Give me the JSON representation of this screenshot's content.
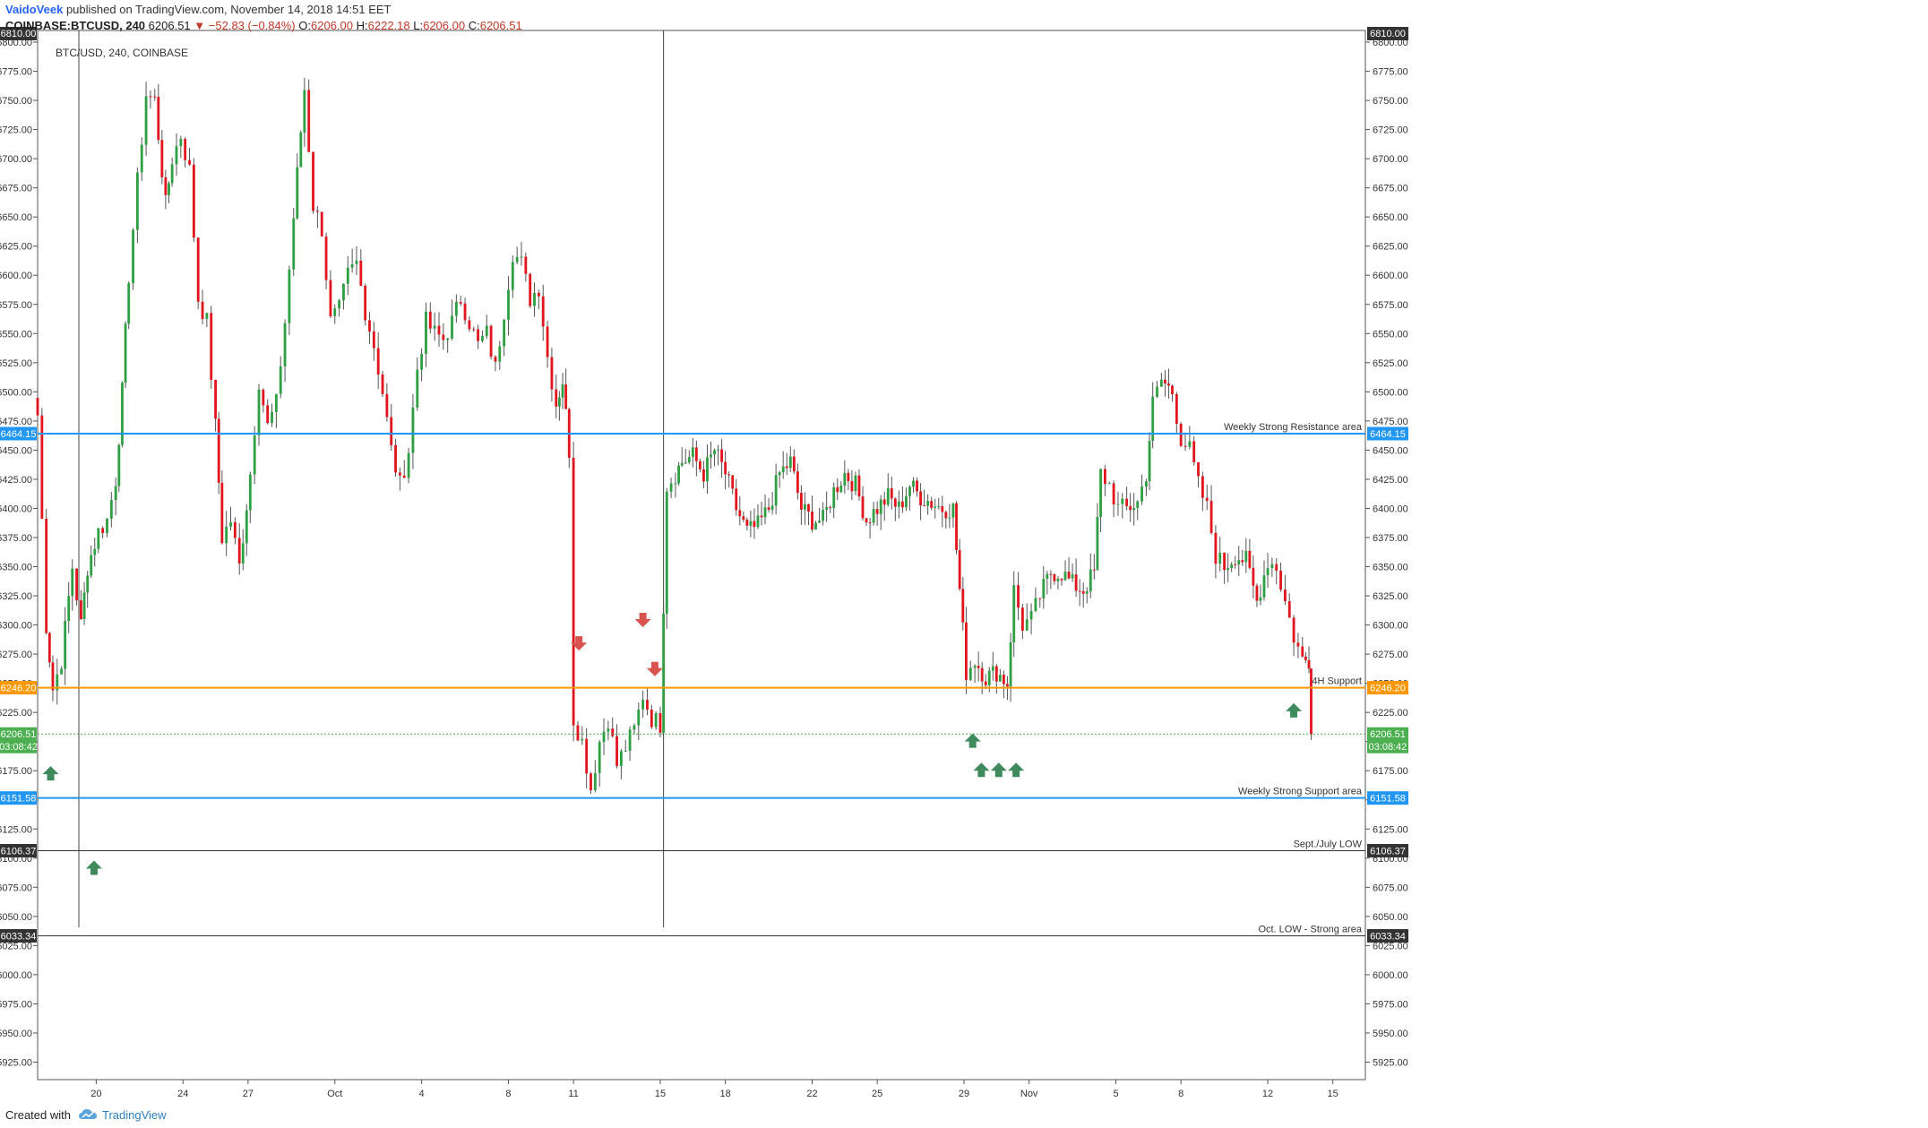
{
  "header": {
    "author": "VaidoVeek",
    "published": "published on TradingView.com, November 14, 2018 14:51 EET",
    "symbol": "COINBASE:BTCUSD, 240",
    "last": "6206.51",
    "change_arrow": "▼",
    "change": "−52.83 (−0.84%)",
    "o_label": "O:",
    "o": "6206.00",
    "h_label": "H:",
    "h": "6222.18",
    "l_label": "L:",
    "l": "6206.00",
    "c_label": "C:",
    "c": "6206.51"
  },
  "footer": {
    "created_with": "Created with",
    "brand": "TradingView",
    "logo_icon": "tradingview-cloud-icon"
  },
  "colors": {
    "up": "#2ea043",
    "down": "#e0151d",
    "resistance": "#2196f3",
    "support4h": "#ff9800",
    "price": "#4caf50",
    "lowline": "#333333"
  },
  "chart_data": {
    "type": "candlestick",
    "title": "BTC/USD, 240, COINBASE",
    "ylim": [
      5910,
      6810
    ],
    "y_ticks": [
      5925,
      5950,
      5975,
      6000,
      6025,
      6050,
      6075,
      6100,
      6125,
      6150,
      6175,
      6200,
      6225,
      6250,
      6275,
      6300,
      6325,
      6350,
      6375,
      6400,
      6425,
      6450,
      6475,
      6500,
      6525,
      6550,
      6575,
      6600,
      6625,
      6650,
      6675,
      6700,
      6725,
      6750,
      6775,
      6800
    ],
    "x_ticks": [
      {
        "label": "20",
        "day": 20
      },
      {
        "label": "24",
        "day": 24
      },
      {
        "label": "27",
        "day": 27
      },
      {
        "label": "Oct",
        "day": 31
      },
      {
        "label": "4",
        "day": 35
      },
      {
        "label": "8",
        "day": 39
      },
      {
        "label": "11",
        "day": 42
      },
      {
        "label": "15",
        "day": 46
      },
      {
        "label": "18",
        "day": 49
      },
      {
        "label": "22",
        "day": 53
      },
      {
        "label": "25",
        "day": 56
      },
      {
        "label": "29",
        "day": 60
      },
      {
        "label": "Nov",
        "day": 63
      },
      {
        "label": "5",
        "day": 67
      },
      {
        "label": "8",
        "day": 70
      },
      {
        "label": "12",
        "day": 74
      },
      {
        "label": "15",
        "day": 77
      }
    ],
    "x_range_days": [
      17.3,
      78.5
    ],
    "hlines": [
      {
        "price": 6464.15,
        "label": "Weekly Strong Resistance area",
        "badge": "6464.15",
        "color": "#2196f3",
        "width": 2
      },
      {
        "price": 6246.2,
        "label": "4H Support",
        "badge": "6246.20",
        "color": "#ff9800",
        "width": 2
      },
      {
        "price": 6151.58,
        "label": "Weekly Strong Support area",
        "badge": "6151.58",
        "color": "#2196f3",
        "width": 2
      },
      {
        "price": 6106.37,
        "label": "Sept./July LOW",
        "badge": "6106.37",
        "color": "#333333",
        "width": 1
      },
      {
        "price": 6033.34,
        "label": "Oct. LOW - Strong area",
        "badge": "6033.34",
        "color": "#333333",
        "width": 1
      }
    ],
    "top_badge": "6810.00",
    "last_price": {
      "price": 6206.51,
      "badge": "6206.51",
      "countdown": "03:08:42"
    },
    "vlines_days": [
      19.2,
      46.15
    ],
    "up_arrows": [
      {
        "day": 17.9,
        "price": 6172
      },
      {
        "day": 19.9,
        "price": 6091
      },
      {
        "day": 60.4,
        "price": 6200
      },
      {
        "day": 60.8,
        "price": 6175
      },
      {
        "day": 61.6,
        "price": 6175
      },
      {
        "day": 62.4,
        "price": 6175
      },
      {
        "day": 75.2,
        "price": 6226
      }
    ],
    "down_arrows": [
      {
        "day": 42.25,
        "price": 6285
      },
      {
        "day": 45.2,
        "price": 6305
      },
      {
        "day": 45.75,
        "price": 6263
      }
    ],
    "anchors": [
      [
        17.3,
        6480
      ],
      [
        17.7,
        6300
      ],
      [
        18.0,
        6245
      ],
      [
        18.4,
        6270
      ],
      [
        18.9,
        6350
      ],
      [
        19.3,
        6300
      ],
      [
        19.6,
        6350
      ],
      [
        20.1,
        6380
      ],
      [
        20.5,
        6390
      ],
      [
        20.9,
        6425
      ],
      [
        21.2,
        6500
      ],
      [
        21.5,
        6600
      ],
      [
        21.9,
        6680
      ],
      [
        22.3,
        6755
      ],
      [
        22.7,
        6750
      ],
      [
        23.2,
        6660
      ],
      [
        23.5,
        6700
      ],
      [
        23.9,
        6720
      ],
      [
        24.3,
        6690
      ],
      [
        24.7,
        6580
      ],
      [
        25.1,
        6560
      ],
      [
        25.5,
        6470
      ],
      [
        25.8,
        6375
      ],
      [
        26.2,
        6390
      ],
      [
        26.6,
        6350
      ],
      [
        27.1,
        6430
      ],
      [
        27.5,
        6510
      ],
      [
        27.9,
        6470
      ],
      [
        28.3,
        6490
      ],
      [
        28.7,
        6560
      ],
      [
        29.1,
        6650
      ],
      [
        29.6,
        6760
      ],
      [
        30.0,
        6660
      ],
      [
        30.4,
        6640
      ],
      [
        30.8,
        6560
      ],
      [
        31.2,
        6570
      ],
      [
        31.6,
        6600
      ],
      [
        32.0,
        6610
      ],
      [
        32.4,
        6570
      ],
      [
        32.8,
        6540
      ],
      [
        33.2,
        6500
      ],
      [
        33.6,
        6450
      ],
      [
        34.0,
        6420
      ],
      [
        34.4,
        6450
      ],
      [
        34.8,
        6520
      ],
      [
        35.2,
        6560
      ],
      [
        35.6,
        6550
      ],
      [
        36.0,
        6545
      ],
      [
        36.4,
        6560
      ],
      [
        36.8,
        6580
      ],
      [
        37.2,
        6560
      ],
      [
        37.6,
        6540
      ],
      [
        38.0,
        6550
      ],
      [
        38.4,
        6520
      ],
      [
        38.8,
        6570
      ],
      [
        39.2,
        6620
      ],
      [
        39.6,
        6610
      ],
      [
        40.0,
        6580
      ],
      [
        40.4,
        6590
      ],
      [
        40.8,
        6530
      ],
      [
        41.2,
        6490
      ],
      [
        41.5,
        6510
      ],
      [
        41.8,
        6450
      ],
      [
        42.0,
        6220
      ],
      [
        42.4,
        6200
      ],
      [
        42.8,
        6160
      ],
      [
        43.2,
        6200
      ],
      [
        43.6,
        6220
      ],
      [
        44.0,
        6180
      ],
      [
        44.4,
        6195
      ],
      [
        44.8,
        6210
      ],
      [
        45.2,
        6240
      ],
      [
        45.6,
        6220
      ],
      [
        46.0,
        6215
      ],
      [
        46.3,
        6420
      ],
      [
        46.7,
        6430
      ],
      [
        47.0,
        6440
      ],
      [
        47.5,
        6445
      ],
      [
        48.0,
        6430
      ],
      [
        48.5,
        6450
      ],
      [
        49.0,
        6430
      ],
      [
        49.5,
        6400
      ],
      [
        50.0,
        6380
      ],
      [
        50.5,
        6385
      ],
      [
        51.0,
        6400
      ],
      [
        51.5,
        6430
      ],
      [
        52.0,
        6440
      ],
      [
        52.5,
        6400
      ],
      [
        53.0,
        6390
      ],
      [
        53.5,
        6390
      ],
      [
        54.0,
        6415
      ],
      [
        54.5,
        6430
      ],
      [
        55.0,
        6420
      ],
      [
        55.5,
        6390
      ],
      [
        56.0,
        6400
      ],
      [
        56.5,
        6410
      ],
      [
        57.0,
        6400
      ],
      [
        57.5,
        6420
      ],
      [
        58.0,
        6410
      ],
      [
        58.5,
        6405
      ],
      [
        59.0,
        6400
      ],
      [
        59.5,
        6400
      ],
      [
        59.8,
        6330
      ],
      [
        60.1,
        6260
      ],
      [
        60.5,
        6270
      ],
      [
        61.0,
        6255
      ],
      [
        61.5,
        6260
      ],
      [
        62.0,
        6250
      ],
      [
        62.3,
        6330
      ],
      [
        62.7,
        6300
      ],
      [
        63.1,
        6305
      ],
      [
        63.5,
        6325
      ],
      [
        64.0,
        6345
      ],
      [
        64.5,
        6345
      ],
      [
        65.0,
        6335
      ],
      [
        65.5,
        6330
      ],
      [
        66.0,
        6345
      ],
      [
        66.3,
        6430
      ],
      [
        66.7,
        6420
      ],
      [
        67.1,
        6400
      ],
      [
        67.5,
        6400
      ],
      [
        68.0,
        6405
      ],
      [
        68.4,
        6430
      ],
      [
        68.7,
        6490
      ],
      [
        69.1,
        6510
      ],
      [
        69.6,
        6500
      ],
      [
        70.0,
        6460
      ],
      [
        70.4,
        6450
      ],
      [
        70.8,
        6420
      ],
      [
        71.2,
        6400
      ],
      [
        71.6,
        6360
      ],
      [
        72.0,
        6350
      ],
      [
        72.5,
        6360
      ],
      [
        73.0,
        6355
      ],
      [
        73.5,
        6320
      ],
      [
        74.0,
        6355
      ],
      [
        74.4,
        6350
      ],
      [
        74.8,
        6320
      ],
      [
        75.2,
        6290
      ],
      [
        75.6,
        6270
      ],
      [
        75.9,
        6270
      ],
      [
        76.0,
        6206
      ]
    ]
  }
}
